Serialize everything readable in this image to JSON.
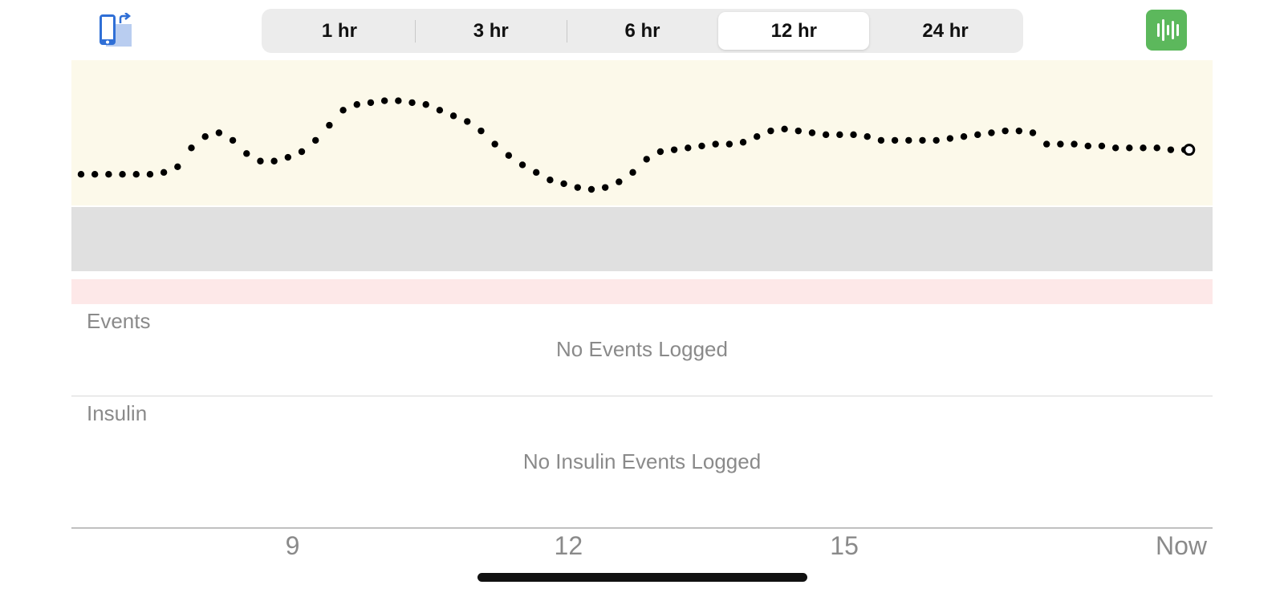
{
  "toolbar": {
    "rotate_icon": "device-rotate-icon",
    "meter_icon": "waveform-meter-icon",
    "meter_color": "#5cb85c"
  },
  "time_ranges": {
    "options": [
      "1 hr",
      "3 hr",
      "6 hr",
      "12 hr",
      "24 hr"
    ],
    "selected": "12 hr"
  },
  "chart_data": {
    "type": "scatter",
    "x_unit": "hours",
    "x_range": [
      6.7,
      18.9
    ],
    "x_ticks": [
      {
        "x": 9,
        "label": "9"
      },
      {
        "x": 12,
        "label": "12"
      },
      {
        "x": 15,
        "label": "15"
      },
      {
        "x": 18.75,
        "label": "Now"
      }
    ],
    "bands": [
      {
        "name": "high",
        "color": "#fcf9ea"
      },
      {
        "name": "target",
        "color": "#e0e0e0"
      },
      {
        "name": "low",
        "color": "#fde8e8"
      }
    ],
    "series": [
      {
        "marker_color": "#000000",
        "latest_marker": "hollow-circle",
        "points": [
          [
            6.7,
            0.48
          ],
          [
            6.85,
            0.48
          ],
          [
            7.0,
            0.48
          ],
          [
            7.15,
            0.48
          ],
          [
            7.3,
            0.48
          ],
          [
            7.45,
            0.48
          ],
          [
            7.6,
            0.49
          ],
          [
            7.75,
            0.52
          ],
          [
            7.9,
            0.62
          ],
          [
            8.05,
            0.68
          ],
          [
            8.2,
            0.7
          ],
          [
            8.35,
            0.66
          ],
          [
            8.5,
            0.59
          ],
          [
            8.65,
            0.55
          ],
          [
            8.8,
            0.55
          ],
          [
            8.95,
            0.57
          ],
          [
            9.1,
            0.6
          ],
          [
            9.25,
            0.66
          ],
          [
            9.4,
            0.74
          ],
          [
            9.55,
            0.82
          ],
          [
            9.7,
            0.85
          ],
          [
            9.85,
            0.86
          ],
          [
            10.0,
            0.87
          ],
          [
            10.15,
            0.87
          ],
          [
            10.3,
            0.86
          ],
          [
            10.45,
            0.85
          ],
          [
            10.6,
            0.82
          ],
          [
            10.75,
            0.79
          ],
          [
            10.9,
            0.76
          ],
          [
            11.05,
            0.71
          ],
          [
            11.2,
            0.64
          ],
          [
            11.35,
            0.58
          ],
          [
            11.5,
            0.53
          ],
          [
            11.65,
            0.49
          ],
          [
            11.8,
            0.45
          ],
          [
            11.95,
            0.43
          ],
          [
            12.1,
            0.41
          ],
          [
            12.25,
            0.4
          ],
          [
            12.4,
            0.41
          ],
          [
            12.55,
            0.44
          ],
          [
            12.7,
            0.49
          ],
          [
            12.85,
            0.56
          ],
          [
            13.0,
            0.6
          ],
          [
            13.15,
            0.61
          ],
          [
            13.3,
            0.62
          ],
          [
            13.45,
            0.63
          ],
          [
            13.6,
            0.64
          ],
          [
            13.75,
            0.64
          ],
          [
            13.9,
            0.65
          ],
          [
            14.05,
            0.68
          ],
          [
            14.2,
            0.71
          ],
          [
            14.35,
            0.72
          ],
          [
            14.5,
            0.71
          ],
          [
            14.65,
            0.7
          ],
          [
            14.8,
            0.69
          ],
          [
            14.95,
            0.69
          ],
          [
            15.1,
            0.69
          ],
          [
            15.25,
            0.68
          ],
          [
            15.4,
            0.66
          ],
          [
            15.55,
            0.66
          ],
          [
            15.7,
            0.66
          ],
          [
            15.85,
            0.66
          ],
          [
            16.0,
            0.66
          ],
          [
            16.15,
            0.67
          ],
          [
            16.3,
            0.68
          ],
          [
            16.45,
            0.69
          ],
          [
            16.6,
            0.7
          ],
          [
            16.75,
            0.71
          ],
          [
            16.9,
            0.71
          ],
          [
            17.05,
            0.7
          ],
          [
            17.2,
            0.64
          ],
          [
            17.35,
            0.64
          ],
          [
            17.5,
            0.64
          ],
          [
            17.65,
            0.63
          ],
          [
            17.8,
            0.63
          ],
          [
            17.95,
            0.62
          ],
          [
            18.1,
            0.62
          ],
          [
            18.25,
            0.62
          ],
          [
            18.4,
            0.62
          ],
          [
            18.55,
            0.61
          ],
          [
            18.7,
            0.61
          ]
        ],
        "latest": [
          18.75,
          0.61
        ]
      }
    ]
  },
  "events": {
    "label": "Events",
    "empty": "No Events Logged"
  },
  "insulin": {
    "label": "Insulin",
    "empty": "No Insulin Events Logged"
  }
}
